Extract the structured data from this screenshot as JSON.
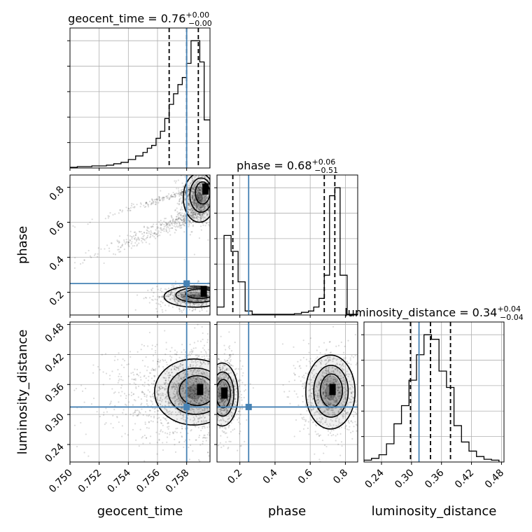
{
  "chart_data": {
    "type": "corner",
    "truth_color": "#4682b4",
    "parameters": [
      "geocent_time",
      "phase",
      "luminosity_distance"
    ],
    "truths": {
      "geocent_time": 0.758,
      "phase": 0.25,
      "luminosity_distance": 0.315
    },
    "titles": [
      {
        "param": "geocent_time",
        "text": "geocent_time = 0.76",
        "plus": "+0.00",
        "minus": "−0.00"
      },
      {
        "param": "phase",
        "text": "phase = 0.68",
        "plus": "+0.06",
        "minus": "−0.51"
      },
      {
        "param": "luminosity_distance",
        "text": "luminosity_distance = 0.34",
        "plus": "+0.04",
        "minus": "−0.04"
      }
    ],
    "axes": {
      "geocent_time": {
        "label": "geocent_time",
        "lim": [
          0.75,
          0.7596
        ],
        "ticks": [
          0.75,
          0.752,
          0.754,
          0.756,
          0.758
        ],
        "tick_labels": [
          "0.750",
          "0.752",
          "0.754",
          "0.756",
          "0.758"
        ]
      },
      "phase": {
        "label": "phase",
        "lim": [
          0.07,
          0.87
        ],
        "ticks": [
          0.2,
          0.4,
          0.6,
          0.8
        ],
        "tick_labels": [
          "0.2",
          "0.4",
          "0.6",
          "0.8"
        ]
      },
      "luminosity_distance": {
        "label": "luminosity_distance",
        "lim": [
          0.205,
          0.485
        ],
        "ticks": [
          0.24,
          0.3,
          0.36,
          0.42,
          0.48
        ],
        "tick_labels": [
          "0.24",
          "0.30",
          "0.36",
          "0.42",
          "0.48"
        ]
      }
    },
    "histograms": {
      "geocent_time": {
        "edges": [
          0.75,
          0.7505,
          0.751,
          0.7515,
          0.752,
          0.7525,
          0.753,
          0.7535,
          0.754,
          0.7545,
          0.755,
          0.7553,
          0.7556,
          0.7559,
          0.7562,
          0.7565,
          0.7568,
          0.7571,
          0.7574,
          0.7577,
          0.758,
          0.7583,
          0.7586,
          0.7589,
          0.7592,
          0.7596
        ],
        "counts": [
          1,
          2,
          2,
          3,
          3,
          4,
          6,
          8,
          12,
          17,
          22,
          28,
          32,
          42,
          52,
          70,
          90,
          105,
          118,
          128,
          148,
          180,
          180,
          150,
          68
        ],
        "quantiles": [
          0.7568,
          0.758,
          0.7588
        ]
      },
      "phase": {
        "edges": [
          0.07,
          0.11,
          0.15,
          0.19,
          0.23,
          0.27,
          0.31,
          0.35,
          0.39,
          0.43,
          0.47,
          0.51,
          0.55,
          0.59,
          0.62,
          0.65,
          0.68,
          0.71,
          0.74,
          0.77,
          0.81,
          0.87
        ],
        "counts": [
          12,
          120,
          96,
          50,
          6,
          1,
          1,
          1,
          1,
          1,
          1,
          2,
          4,
          6,
          12,
          25,
          60,
          180,
          192,
          60,
          1
        ],
        "quantiles": [
          0.16,
          0.68,
          0.74
        ]
      },
      "luminosity_distance": {
        "edges": [
          0.205,
          0.22,
          0.235,
          0.25,
          0.265,
          0.28,
          0.295,
          0.31,
          0.325,
          0.34,
          0.355,
          0.37,
          0.385,
          0.4,
          0.415,
          0.43,
          0.445,
          0.46,
          0.475
        ],
        "counts": [
          2,
          4,
          8,
          20,
          42,
          62,
          90,
          118,
          140,
          135,
          100,
          82,
          40,
          22,
          12,
          6,
          3,
          2
        ],
        "quantiles": [
          0.298,
          0.338,
          0.378
        ]
      }
    },
    "contours": [
      {
        "x": "geocent_time",
        "y": "phase",
        "blobs": [
          {
            "cx": 0.75887,
            "cy": 0.74,
            "rx": 0.0011,
            "ry": 0.14,
            "dx": 0.0004,
            "dy": 0.05
          },
          {
            "cx": 0.75855,
            "cy": 0.175,
            "rx": 0.0021,
            "ry": 0.06,
            "dx": 0.0006,
            "dy": 0.03
          }
        ]
      },
      {
        "x": "geocent_time",
        "y": "luminosity_distance",
        "blobs": [
          {
            "cx": 0.7585,
            "cy": 0.345,
            "rx": 0.0027,
            "ry": 0.066,
            "dx": 0.0004,
            "dy": 0.005
          }
        ]
      },
      {
        "x": "phase",
        "y": "luminosity_distance",
        "blobs": [
          {
            "cx": 0.1,
            "cy": 0.34,
            "rx": 0.09,
            "ry": 0.063,
            "dx": 0.01,
            "dy": 0.003
          },
          {
            "cx": 0.715,
            "cy": 0.345,
            "rx": 0.14,
            "ry": 0.074,
            "dx": 0.01,
            "dy": 0.005
          }
        ]
      }
    ]
  }
}
